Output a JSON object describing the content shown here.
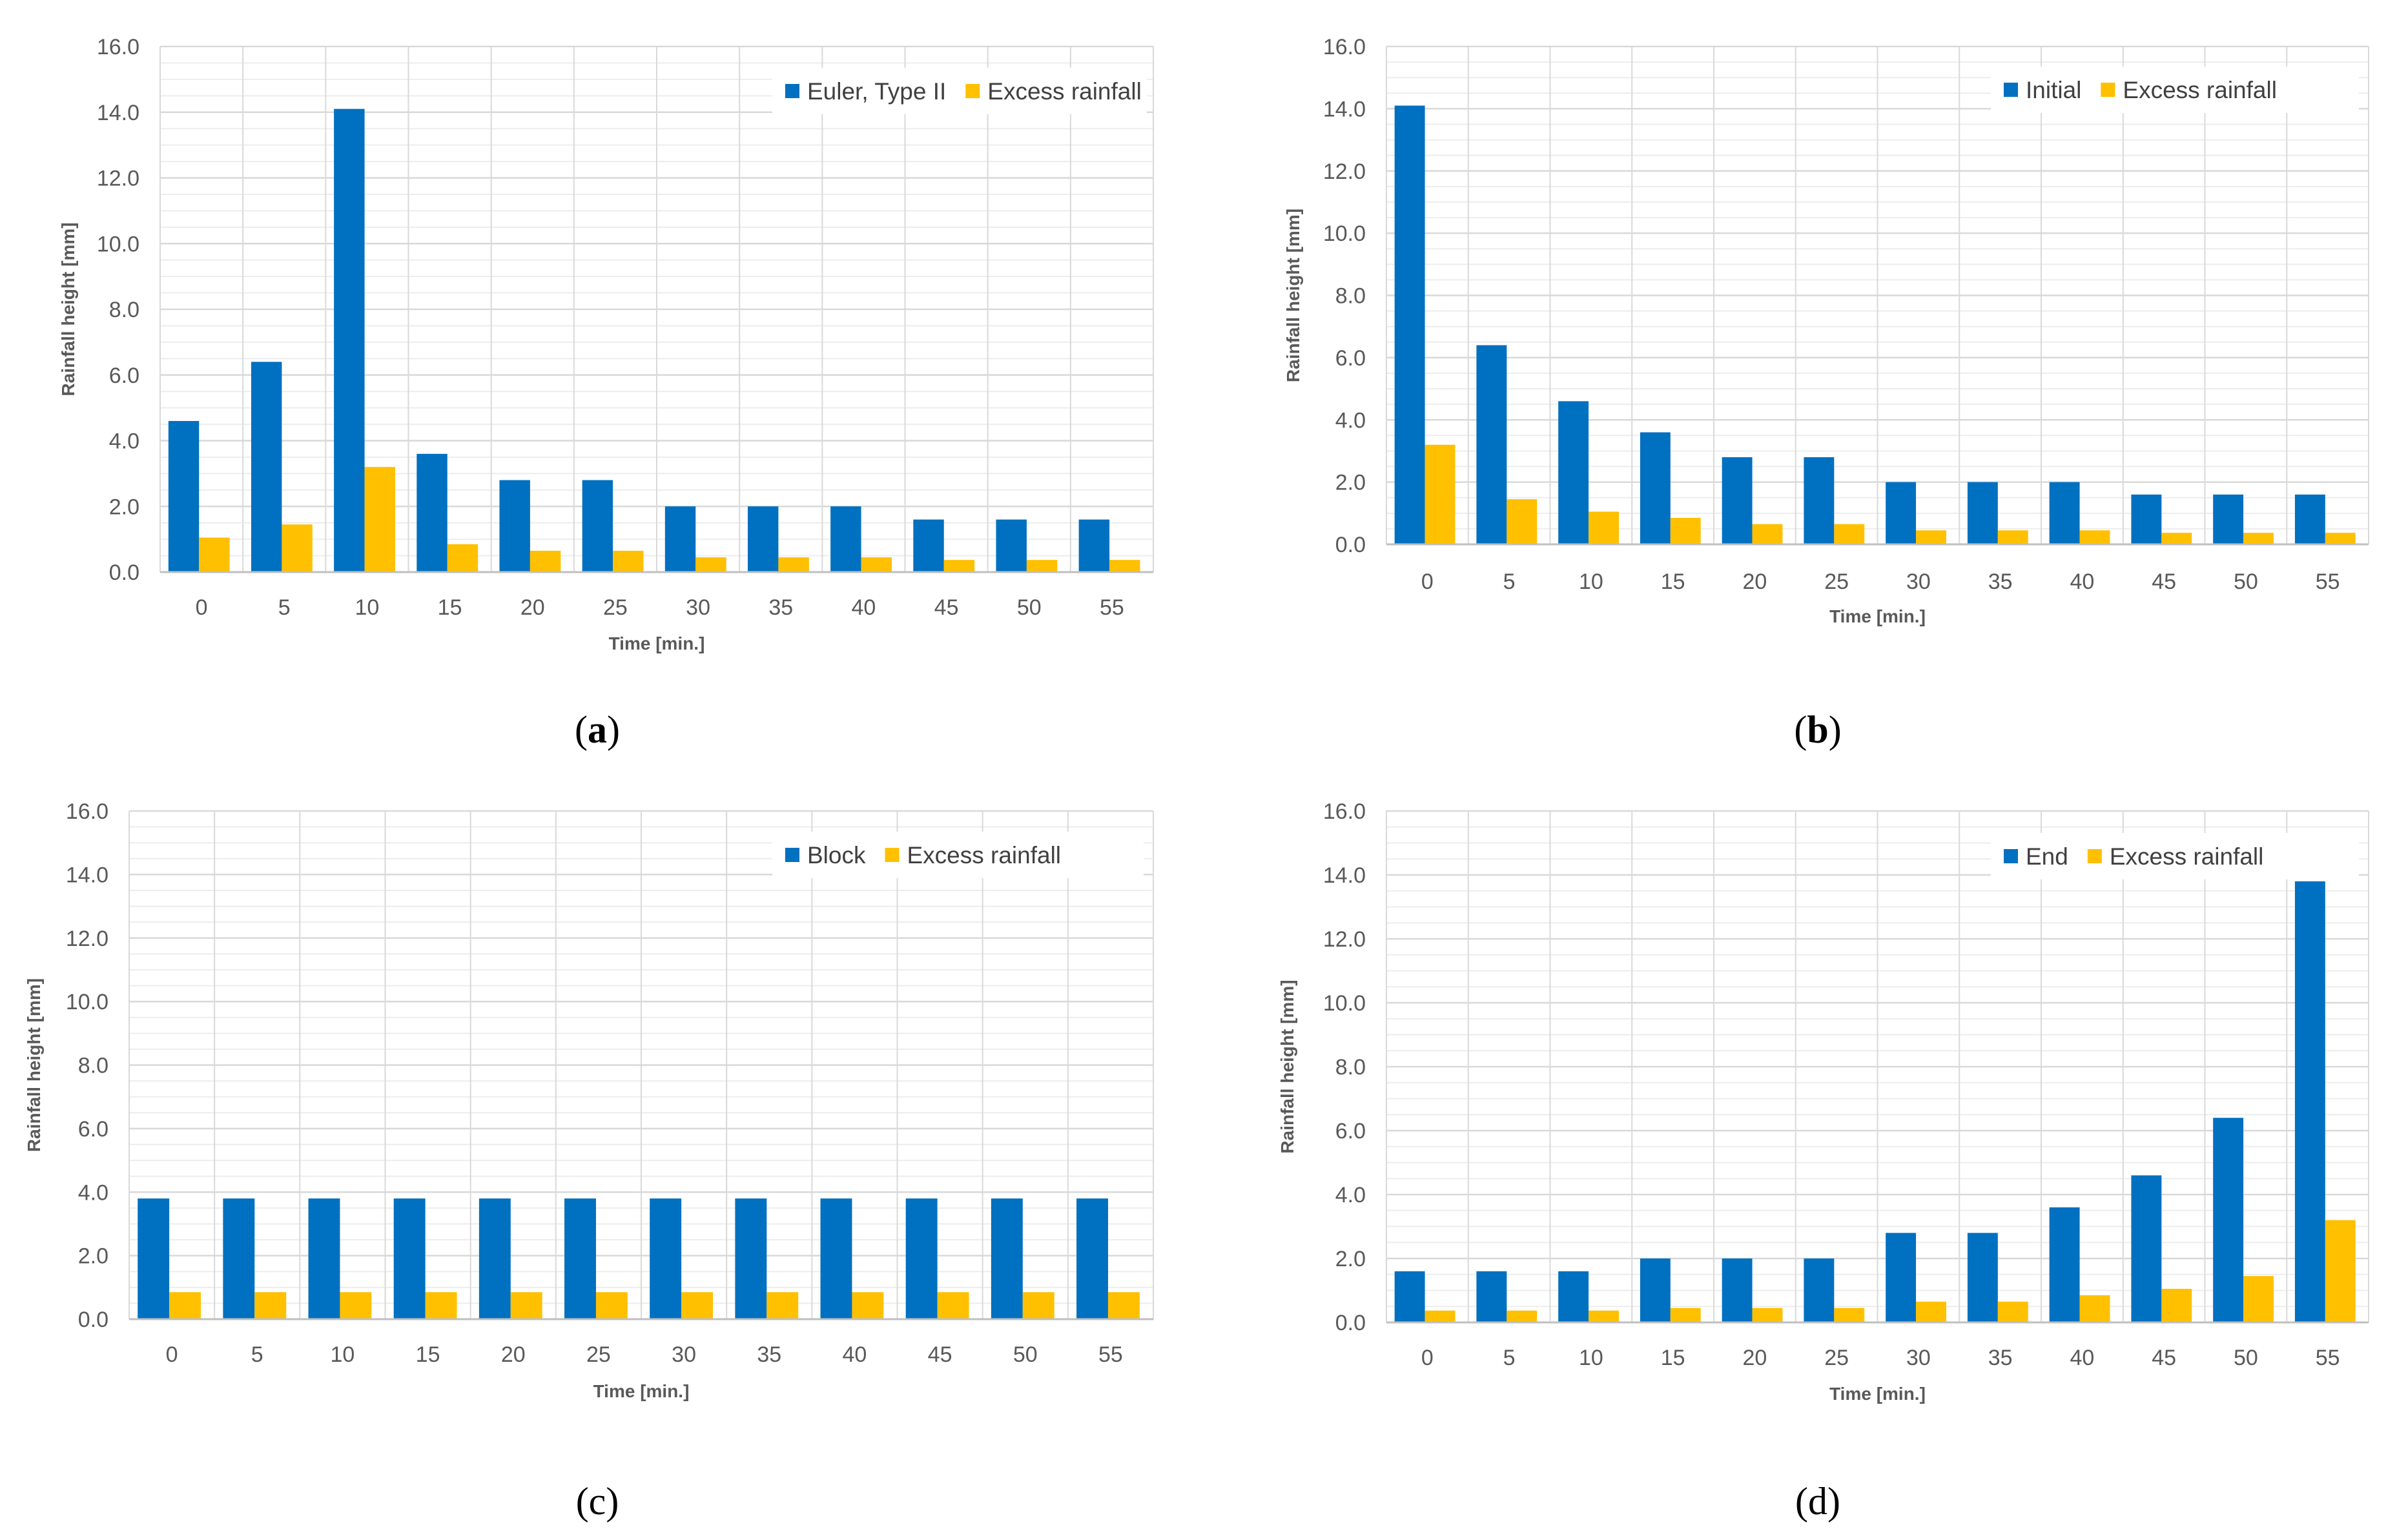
{
  "colors": {
    "primary": "#0070C0",
    "excess": "#FFC000",
    "grid_major": "#D9D9D9",
    "grid_minor": "#EDEDED",
    "text": "#595959"
  },
  "chart_data": [
    {
      "type": "bar",
      "id": "a",
      "caption": {
        "open": "(",
        "letter": "a",
        "close": ")",
        "bold": true
      },
      "categories": [
        "0",
        "5",
        "10",
        "15",
        "20",
        "25",
        "30",
        "35",
        "40",
        "45",
        "50",
        "55"
      ],
      "series": [
        {
          "name": "Euler, Type II",
          "values": [
            4.6,
            6.4,
            14.1,
            3.6,
            2.8,
            2.8,
            2.0,
            2.0,
            2.0,
            1.6,
            1.6,
            1.6
          ]
        },
        {
          "name": "Excess rainfall",
          "values": [
            1.05,
            1.45,
            3.2,
            0.85,
            0.65,
            0.65,
            0.45,
            0.45,
            0.45,
            0.37,
            0.37,
            0.37
          ]
        }
      ],
      "xlabel": "Time [min.]",
      "ylabel": "Rainfall height [mm]",
      "ylim": [
        0,
        16
      ],
      "yticks": [
        "0.0",
        "2.0",
        "4.0",
        "6.0",
        "8.0",
        "10.0",
        "12.0",
        "14.0",
        "16.0"
      ],
      "legend_position": "top-right",
      "grid": true
    },
    {
      "type": "bar",
      "id": "b",
      "caption": {
        "open": "(",
        "letter": "b",
        "close": ")",
        "bold": true
      },
      "categories": [
        "0",
        "5",
        "10",
        "15",
        "20",
        "25",
        "30",
        "35",
        "40",
        "45",
        "50",
        "55"
      ],
      "series": [
        {
          "name": "Initial",
          "values": [
            14.1,
            6.4,
            4.6,
            3.6,
            2.8,
            2.8,
            2.0,
            2.0,
            2.0,
            1.6,
            1.6,
            1.6
          ]
        },
        {
          "name": "Excess rainfall",
          "values": [
            3.2,
            1.45,
            1.05,
            0.85,
            0.65,
            0.65,
            0.45,
            0.45,
            0.45,
            0.37,
            0.37,
            0.37
          ]
        }
      ],
      "xlabel": "Time [min.]",
      "ylabel": "Rainfall height [mm]",
      "ylim": [
        0,
        16
      ],
      "yticks": [
        "0.0",
        "2.0",
        "4.0",
        "6.0",
        "8.0",
        "10.0",
        "12.0",
        "14.0",
        "16.0"
      ],
      "legend_position": "top-right",
      "grid": true
    },
    {
      "type": "bar",
      "id": "c",
      "caption": {
        "open": "(",
        "letter": "c",
        "close": ")",
        "bold": false
      },
      "categories": [
        "0",
        "5",
        "10",
        "15",
        "20",
        "25",
        "30",
        "35",
        "40",
        "45",
        "50",
        "55"
      ],
      "series": [
        {
          "name": "Block",
          "values": [
            3.8,
            3.8,
            3.8,
            3.8,
            3.8,
            3.8,
            3.8,
            3.8,
            3.8,
            3.8,
            3.8,
            3.8
          ]
        },
        {
          "name": "Excess rainfall",
          "values": [
            0.85,
            0.85,
            0.85,
            0.85,
            0.85,
            0.85,
            0.85,
            0.85,
            0.85,
            0.85,
            0.85,
            0.85
          ]
        }
      ],
      "xlabel": "Time [min.]",
      "ylabel": "Rainfall height [mm]",
      "ylim": [
        0,
        16
      ],
      "yticks": [
        "0.0",
        "2.0",
        "4.0",
        "6.0",
        "8.0",
        "10.0",
        "12.0",
        "14.0",
        "16.0"
      ],
      "legend_position": "top-right",
      "grid": true
    },
    {
      "type": "bar",
      "id": "d",
      "caption": {
        "open": "(",
        "letter": "d",
        "close": ")",
        "bold": false
      },
      "categories": [
        "0",
        "5",
        "10",
        "15",
        "20",
        "25",
        "30",
        "35",
        "40",
        "45",
        "50",
        "55"
      ],
      "series": [
        {
          "name": "End",
          "values": [
            1.6,
            1.6,
            1.6,
            2.0,
            2.0,
            2.0,
            2.8,
            2.8,
            3.6,
            4.6,
            6.4,
            13.8
          ]
        },
        {
          "name": "Excess rainfall",
          "values": [
            0.37,
            0.37,
            0.37,
            0.45,
            0.45,
            0.45,
            0.65,
            0.65,
            0.85,
            1.05,
            1.45,
            3.2
          ]
        }
      ],
      "xlabel": "Time [min.]",
      "ylabel": "Rainfall height [mm]",
      "ylim": [
        0,
        16
      ],
      "yticks": [
        "0.0",
        "2.0",
        "4.0",
        "6.0",
        "8.0",
        "10.0",
        "12.0",
        "14.0",
        "16.0"
      ],
      "legend_position": "top-right",
      "grid": true
    }
  ]
}
